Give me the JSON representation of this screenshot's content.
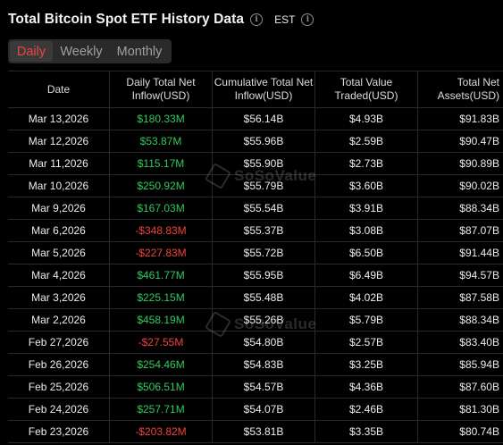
{
  "header": {
    "title": "Total Bitcoin Spot ETF History Data",
    "timezone": "EST"
  },
  "tabs": [
    {
      "label": "Daily",
      "active": true
    },
    {
      "label": "Weekly",
      "active": false
    },
    {
      "label": "Monthly",
      "active": false
    }
  ],
  "watermark": "SoSoValue",
  "table": {
    "columns": [
      "Date",
      "Daily Total Net Inflow(USD)",
      "Cumulative Total Net Inflow(USD)",
      "Total Value Traded(USD)",
      "Total Net Assets(USD)"
    ],
    "rows": [
      {
        "date": "Mar 13,2026",
        "daily": "$180.33M",
        "sign": "pos",
        "cumulative": "$56.14B",
        "traded": "$4.93B",
        "assets": "$91.83B"
      },
      {
        "date": "Mar 12,2026",
        "daily": "$53.87M",
        "sign": "pos",
        "cumulative": "$55.96B",
        "traded": "$2.59B",
        "assets": "$90.47B"
      },
      {
        "date": "Mar 11,2026",
        "daily": "$115.17M",
        "sign": "pos",
        "cumulative": "$55.90B",
        "traded": "$2.73B",
        "assets": "$90.89B"
      },
      {
        "date": "Mar 10,2026",
        "daily": "$250.92M",
        "sign": "pos",
        "cumulative": "$55.79B",
        "traded": "$3.60B",
        "assets": "$90.02B"
      },
      {
        "date": "Mar 9,2026",
        "daily": "$167.03M",
        "sign": "pos",
        "cumulative": "$55.54B",
        "traded": "$3.91B",
        "assets": "$88.34B"
      },
      {
        "date": "Mar 6,2026",
        "daily": "-$348.83M",
        "sign": "neg",
        "cumulative": "$55.37B",
        "traded": "$3.08B",
        "assets": "$87.07B"
      },
      {
        "date": "Mar 5,2026",
        "daily": "-$227.83M",
        "sign": "neg",
        "cumulative": "$55.72B",
        "traded": "$6.50B",
        "assets": "$91.44B"
      },
      {
        "date": "Mar 4,2026",
        "daily": "$461.77M",
        "sign": "pos",
        "cumulative": "$55.95B",
        "traded": "$6.49B",
        "assets": "$94.57B"
      },
      {
        "date": "Mar 3,2026",
        "daily": "$225.15M",
        "sign": "pos",
        "cumulative": "$55.48B",
        "traded": "$4.02B",
        "assets": "$87.58B"
      },
      {
        "date": "Mar 2,2026",
        "daily": "$458.19M",
        "sign": "pos",
        "cumulative": "$55.26B",
        "traded": "$5.79B",
        "assets": "$88.34B"
      },
      {
        "date": "Feb 27,2026",
        "daily": "-$27.55M",
        "sign": "neg",
        "cumulative": "$54.80B",
        "traded": "$2.57B",
        "assets": "$83.40B"
      },
      {
        "date": "Feb 26,2026",
        "daily": "$254.46M",
        "sign": "pos",
        "cumulative": "$54.83B",
        "traded": "$3.25B",
        "assets": "$85.94B"
      },
      {
        "date": "Feb 25,2026",
        "daily": "$506.51M",
        "sign": "pos",
        "cumulative": "$54.57B",
        "traded": "$4.36B",
        "assets": "$87.60B"
      },
      {
        "date": "Feb 24,2026",
        "daily": "$257.71M",
        "sign": "pos",
        "cumulative": "$54.07B",
        "traded": "$2.46B",
        "assets": "$81.30B"
      },
      {
        "date": "Feb 23,2026",
        "daily": "-$203.82M",
        "sign": "neg",
        "cumulative": "$53.81B",
        "traded": "$3.35B",
        "assets": "$80.74B"
      }
    ]
  },
  "colors": {
    "positive": "#30c85e",
    "negative": "#f0433a",
    "active_tab": "#e8483e",
    "background": "#000000"
  }
}
